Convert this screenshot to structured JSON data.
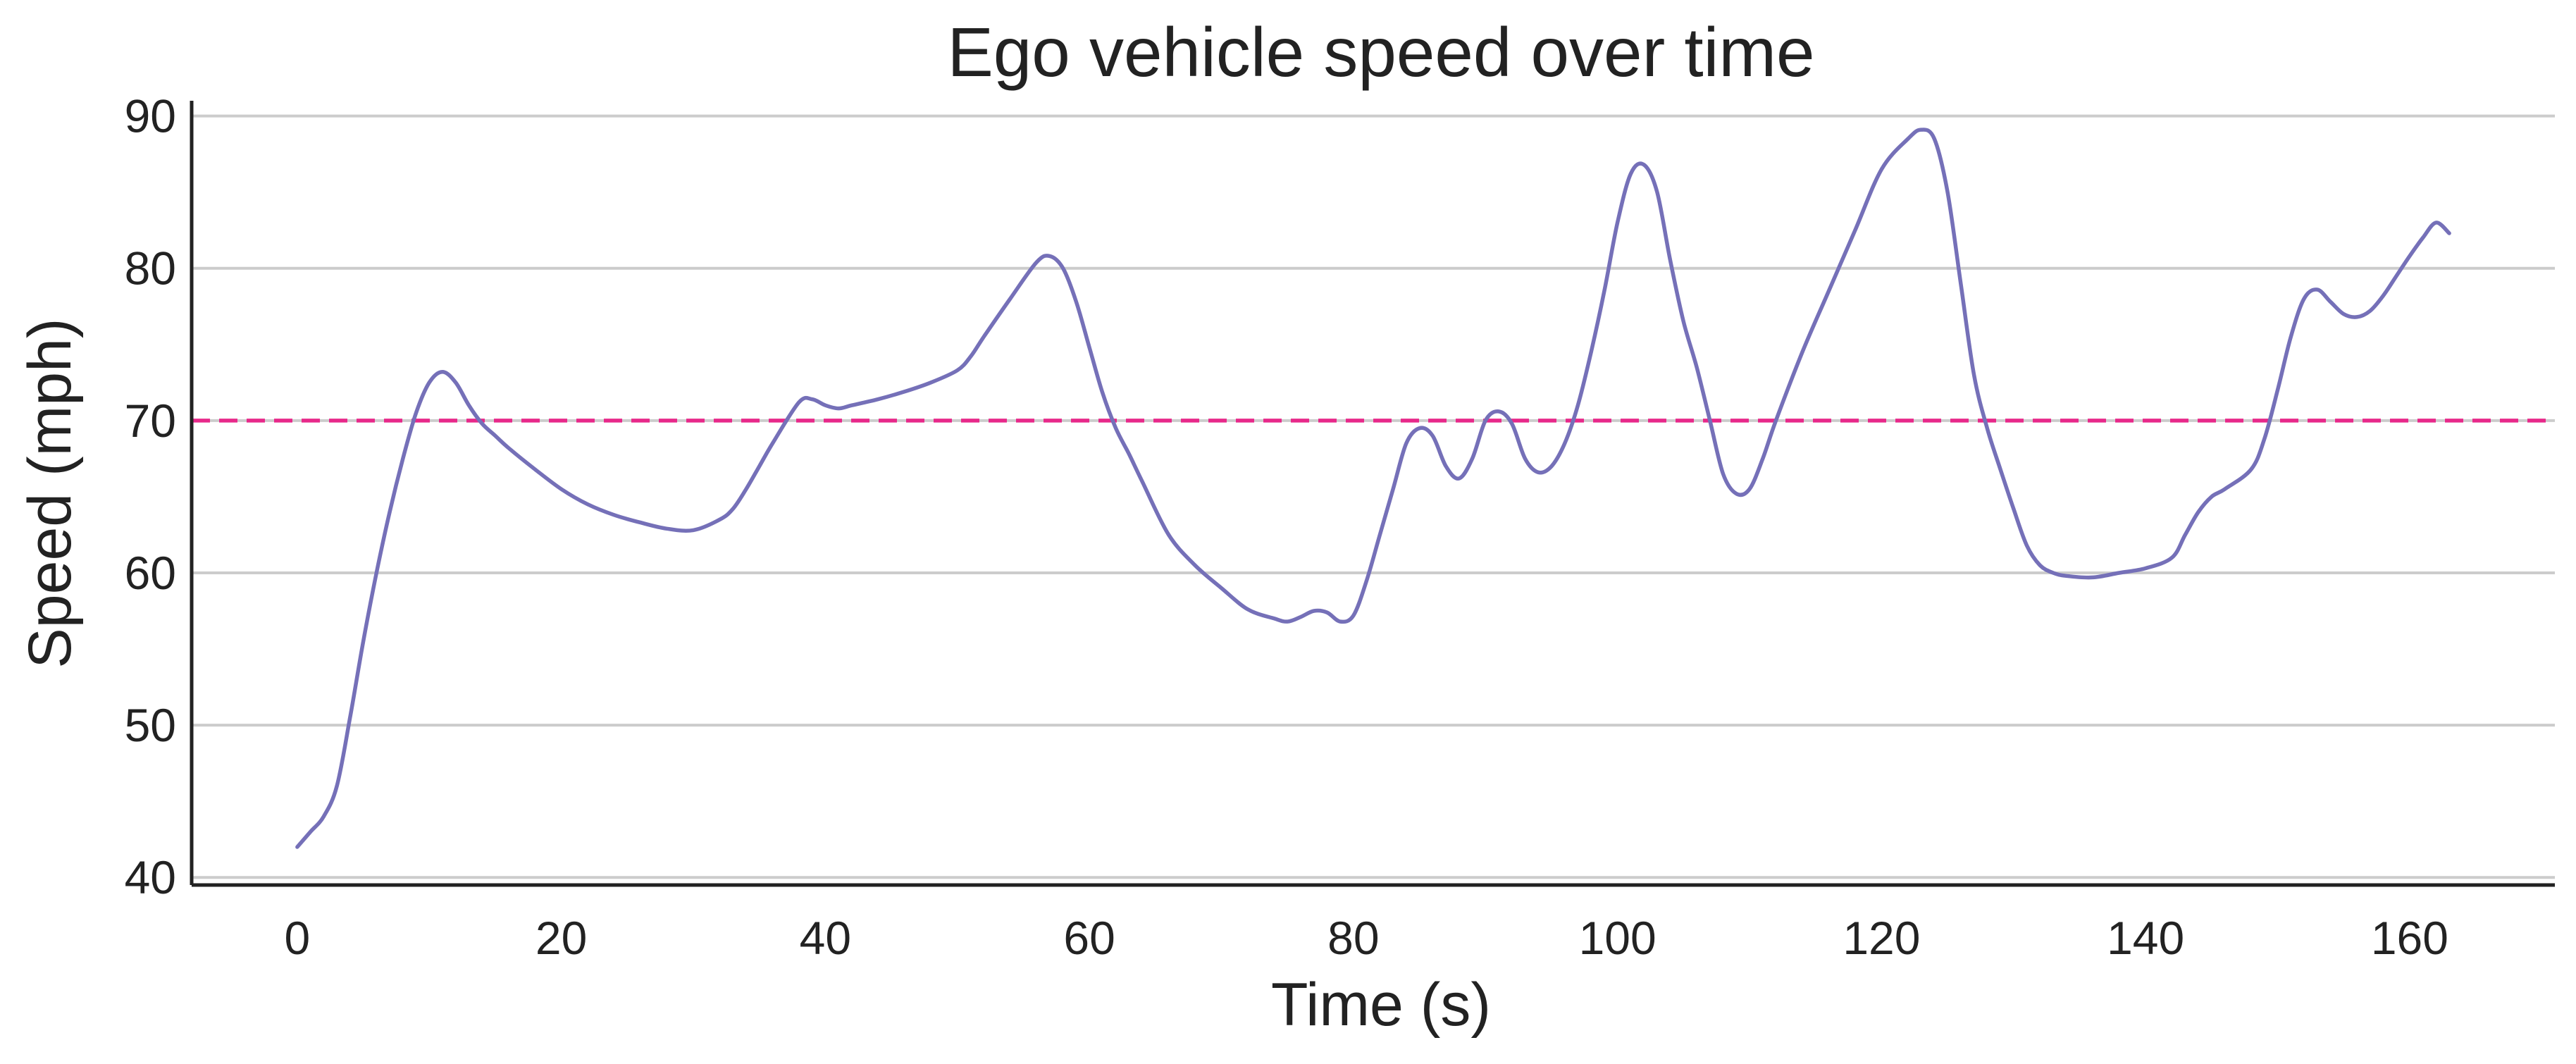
{
  "chart_data": {
    "type": "line",
    "title": "Ego vehicle speed over time",
    "xlabel": "Time (s)",
    "ylabel": "Speed (mph)",
    "xlim": [
      -8,
      171
    ],
    "ylim": [
      39.5,
      91
    ],
    "xticks": [
      0,
      20,
      40,
      60,
      80,
      100,
      120,
      140,
      160
    ],
    "yticks": [
      40,
      50,
      60,
      70,
      80,
      90
    ],
    "grid": "horizontal",
    "legend": "none",
    "colors": {
      "series": "#7570b8",
      "reference": "#e7298a",
      "grid": "#cccccc",
      "axis": "#222222",
      "text": "#222222"
    },
    "reference_line": {
      "y": 70,
      "style": "dashed"
    },
    "series": [
      {
        "x": [
          0,
          1,
          2,
          3,
          4,
          5,
          6,
          7,
          8,
          9,
          10,
          11,
          12,
          13,
          14,
          15,
          16,
          18,
          20,
          22,
          24,
          26,
          28,
          30,
          32,
          33,
          34,
          35,
          36,
          38,
          39,
          40,
          41,
          42,
          44,
          46,
          48,
          50,
          51,
          52,
          54,
          56,
          57,
          58,
          59,
          60,
          61,
          62,
          63,
          64,
          66,
          68,
          70,
          72,
          74,
          75,
          76,
          77,
          78,
          79,
          80,
          81,
          82,
          83,
          84,
          85,
          86,
          87,
          88,
          89,
          90,
          91,
          92,
          93,
          94,
          95,
          96,
          97,
          98,
          99,
          100,
          101,
          102,
          103,
          104,
          105,
          106,
          107,
          108,
          109,
          110,
          111,
          112,
          114,
          116,
          118,
          120,
          122,
          123,
          124,
          125,
          126,
          127,
          128,
          129,
          130,
          131,
          132,
          133,
          134,
          136,
          138,
          140,
          142,
          143,
          144,
          145,
          146,
          148,
          149,
          150,
          151,
          152,
          153,
          154,
          155,
          156,
          157,
          158,
          159,
          160,
          161,
          162,
          163
        ],
        "y": [
          42,
          43,
          44,
          46,
          50.5,
          55.5,
          60,
          64,
          67.5,
          70.5,
          72.5,
          73.2,
          72.5,
          71,
          69.8,
          69,
          68.2,
          66.8,
          65.5,
          64.5,
          63.8,
          63.3,
          62.9,
          62.8,
          63.5,
          64.2,
          65.5,
          67,
          68.5,
          71.2,
          71.4,
          71,
          70.8,
          71,
          71.4,
          71.9,
          72.5,
          73.3,
          74.2,
          75.5,
          78,
          80.4,
          80.8,
          80,
          77.8,
          74.8,
          71.8,
          69.5,
          67.8,
          66,
          62.5,
          60.5,
          59,
          57.6,
          57,
          56.8,
          57.1,
          57.5,
          57.4,
          56.8,
          57.2,
          59.5,
          62.5,
          65.5,
          68.5,
          69.5,
          69,
          67,
          66.2,
          67.5,
          70,
          70.6,
          69.8,
          67.5,
          66.6,
          67,
          68.5,
          71,
          74.5,
          78.5,
          83,
          86.2,
          86.8,
          85,
          80.5,
          76.5,
          73.5,
          70,
          66.5,
          65.2,
          65.5,
          67.5,
          70,
          74.5,
          78.5,
          82.5,
          86.5,
          88.5,
          89.1,
          88.5,
          85,
          79,
          73,
          69.5,
          66.8,
          64.2,
          61.8,
          60.5,
          60,
          59.8,
          59.7,
          60,
          60.3,
          61,
          62.5,
          64,
          65,
          65.5,
          66.8,
          68.8,
          72,
          75.5,
          78,
          78.6,
          77.8,
          77,
          76.8,
          77.2,
          78.2,
          79.5,
          80.8,
          82,
          83,
          82.3
        ]
      }
    ]
  }
}
